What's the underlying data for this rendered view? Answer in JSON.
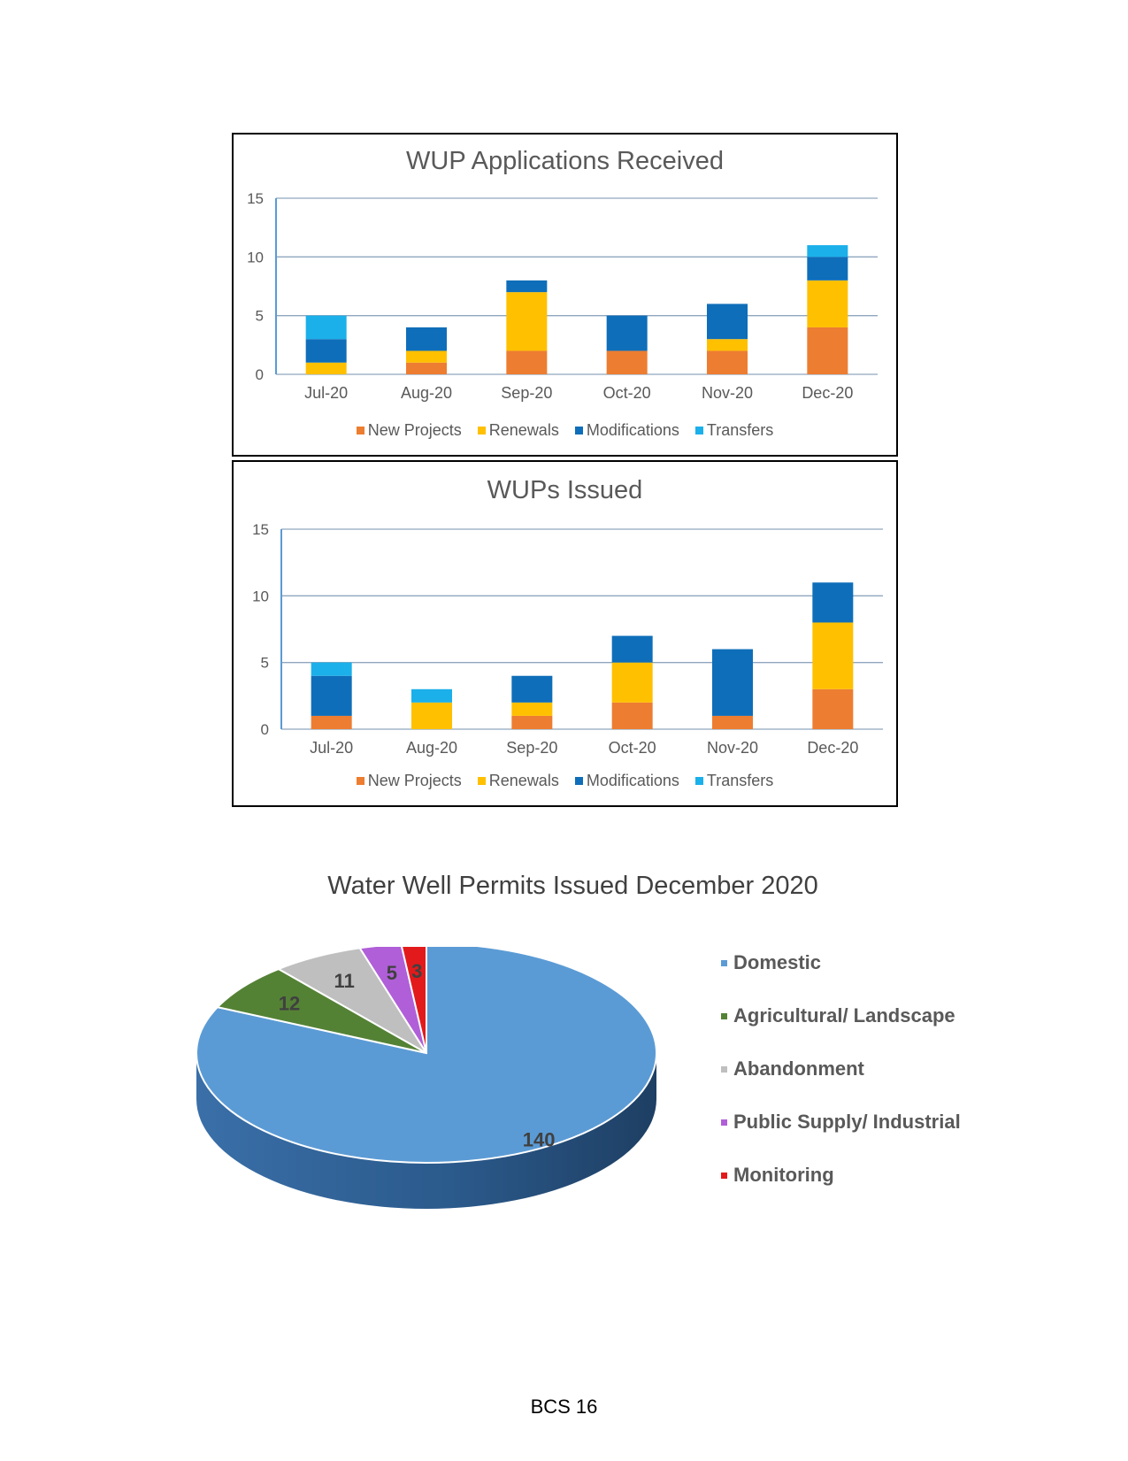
{
  "colors": {
    "New Projects": "#ED7D31",
    "Renewals": "#FFC000",
    "Modifications": "#0F6EB9",
    "Transfers": "#1BB0EA"
  },
  "chart_data": [
    {
      "type": "bar",
      "stacked": true,
      "title": "WUP Applications Received",
      "categories": [
        "Jul-20",
        "Aug-20",
        "Sep-20",
        "Oct-20",
        "Nov-20",
        "Dec-20"
      ],
      "ylim": [
        0,
        15
      ],
      "yticks": [
        "0",
        "5",
        "10",
        "15"
      ],
      "grid": true,
      "legend_position": "bottom",
      "series": [
        {
          "name": "New Projects",
          "values": [
            0,
            1,
            2,
            2,
            2,
            4
          ]
        },
        {
          "name": "Renewals",
          "values": [
            1,
            1,
            5,
            0,
            1,
            4
          ]
        },
        {
          "name": "Modifications",
          "values": [
            2,
            2,
            1,
            3,
            3,
            2
          ]
        },
        {
          "name": "Transfers",
          "values": [
            2,
            0,
            0,
            0,
            0,
            1
          ]
        }
      ]
    },
    {
      "type": "bar",
      "stacked": true,
      "title": "WUPs Issued",
      "categories": [
        "Jul-20",
        "Aug-20",
        "Sep-20",
        "Oct-20",
        "Nov-20",
        "Dec-20"
      ],
      "ylim": [
        0,
        15
      ],
      "yticks": [
        "0",
        "5",
        "10",
        "15"
      ],
      "grid": true,
      "legend_position": "bottom",
      "series": [
        {
          "name": "New Projects",
          "values": [
            1,
            0,
            1,
            2,
            1,
            3
          ]
        },
        {
          "name": "Renewals",
          "values": [
            0,
            2,
            1,
            3,
            0,
            5
          ]
        },
        {
          "name": "Modifications",
          "values": [
            3,
            0,
            2,
            2,
            5,
            3
          ]
        },
        {
          "name": "Transfers",
          "values": [
            1,
            1,
            0,
            0,
            0,
            0
          ]
        }
      ]
    },
    {
      "type": "pie",
      "style": "3d",
      "title": "Water Well Permits Issued December 2020",
      "legend_position": "right",
      "slices": [
        {
          "name": "Domestic",
          "value": 140,
          "color": "#5B9BD5"
        },
        {
          "name": "Agricultural/ Landscape",
          "value": 12,
          "color": "#548235"
        },
        {
          "name": "Abandonment",
          "value": 11,
          "color": "#BFBFBF"
        },
        {
          "name": "Public Supply/ Industrial",
          "value": 5,
          "color": "#B05FD8"
        },
        {
          "name": "Monitoring",
          "value": 3,
          "color": "#E31A1C"
        }
      ]
    }
  ],
  "footer": "BCS 16"
}
